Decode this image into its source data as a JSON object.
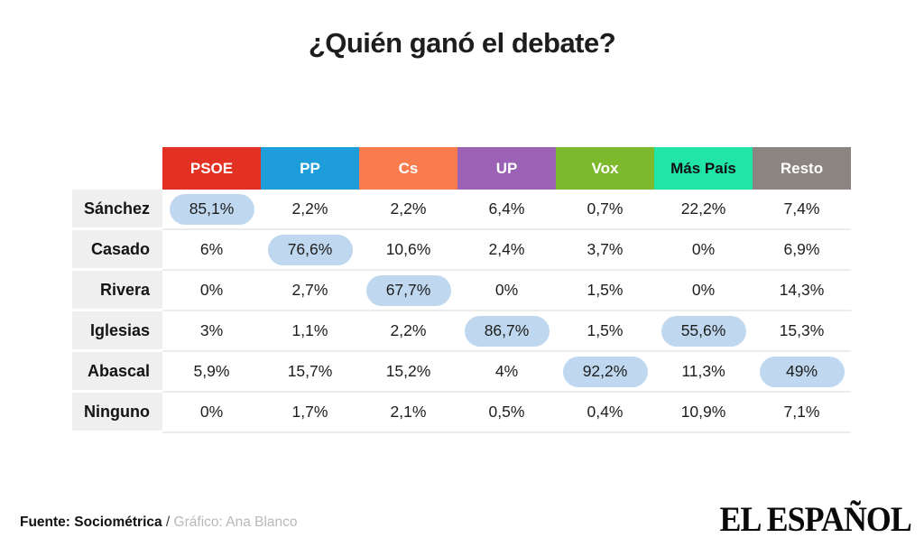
{
  "page": {
    "title": "¿Quién ganó el debate?"
  },
  "chart_data": {
    "type": "table",
    "title": "¿Quién ganó el debate?",
    "columns": [
      {
        "label": "PSOE",
        "color": "#e23122",
        "text_color": "#ffffff"
      },
      {
        "label": "PP",
        "color": "#1d9dda",
        "text_color": "#ffffff"
      },
      {
        "label": "Cs",
        "color": "#f97c4e",
        "text_color": "#ffffff"
      },
      {
        "label": "UP",
        "color": "#9a61b4",
        "text_color": "#ffffff"
      },
      {
        "label": "Vox",
        "color": "#7cb92c",
        "text_color": "#ffffff"
      },
      {
        "label": "Más País",
        "color": "#20e5a7",
        "text_color": "#111111"
      },
      {
        "label": "Resto",
        "color": "#8c8481",
        "text_color": "#ffffff"
      }
    ],
    "rows": [
      {
        "label": "Sánchez",
        "values": [
          "85,1%",
          "2,2%",
          "2,2%",
          "6,4%",
          "0,7%",
          "22,2%",
          "7,4%"
        ],
        "highlighted": [
          0
        ]
      },
      {
        "label": "Casado",
        "values": [
          "6%",
          "76,6%",
          "10,6%",
          "2,4%",
          "3,7%",
          "0%",
          "6,9%"
        ],
        "highlighted": [
          1
        ]
      },
      {
        "label": "Rivera",
        "values": [
          "0%",
          "2,7%",
          "67,7%",
          "0%",
          "1,5%",
          "0%",
          "14,3%"
        ],
        "highlighted": [
          2
        ]
      },
      {
        "label": "Iglesias",
        "values": [
          "3%",
          "1,1%",
          "2,2%",
          "86,7%",
          "1,5%",
          "55,6%",
          "15,3%"
        ],
        "highlighted": [
          3,
          5
        ]
      },
      {
        "label": "Abascal",
        "values": [
          "5,9%",
          "15,7%",
          "15,2%",
          "4%",
          "92,2%",
          "11,3%",
          "49%"
        ],
        "highlighted": [
          4,
          6
        ]
      },
      {
        "label": "Ninguno",
        "values": [
          "0%",
          "1,7%",
          "2,1%",
          "0,5%",
          "0,4%",
          "10,9%",
          "7,1%"
        ],
        "highlighted": []
      }
    ],
    "highlight_color": "#bfd8f0"
  },
  "footer": {
    "source": "Fuente: Sociométrica",
    "separator": " / ",
    "credit": "Gráfico: Ana Blanco",
    "logo": "EL ESPAÑOL"
  }
}
